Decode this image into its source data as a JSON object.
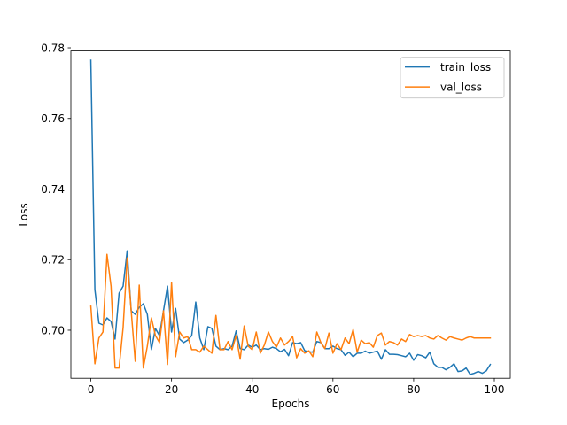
{
  "chart_data": {
    "type": "line",
    "title": "",
    "xlabel": "Epochs",
    "ylabel": "Loss",
    "xlim": [
      -4.95,
      103.95
    ],
    "ylim": [
      0.6864,
      0.7791
    ],
    "xticks": [
      0,
      20,
      40,
      60,
      80,
      100
    ],
    "yticks": [
      0.7,
      0.72,
      0.74,
      0.76,
      0.78
    ],
    "ytick_labels": [
      "0.70",
      "0.72",
      "0.74",
      "0.76",
      "0.78"
    ],
    "legend_position": "upper right",
    "grid": false,
    "x": [
      0,
      1,
      2,
      3,
      4,
      5,
      6,
      7,
      8,
      9,
      10,
      11,
      12,
      13,
      14,
      15,
      16,
      17,
      18,
      19,
      20,
      21,
      22,
      23,
      24,
      25,
      26,
      27,
      28,
      29,
      30,
      31,
      32,
      33,
      34,
      35,
      36,
      37,
      38,
      39,
      40,
      41,
      42,
      43,
      44,
      45,
      46,
      47,
      48,
      49,
      50,
      51,
      52,
      53,
      54,
      55,
      56,
      57,
      58,
      59,
      60,
      61,
      62,
      63,
      64,
      65,
      66,
      67,
      68,
      69,
      70,
      71,
      72,
      73,
      74,
      75,
      76,
      77,
      78,
      79,
      80,
      81,
      82,
      83,
      84,
      85,
      86,
      87,
      88,
      89,
      90,
      91,
      92,
      93,
      94,
      95,
      96,
      97,
      98,
      99
    ],
    "series": [
      {
        "name": "train_loss",
        "color": "#1f77b4",
        "values": [
          0.7765,
          0.7115,
          0.702,
          0.7015,
          0.7035,
          0.7025,
          0.6975,
          0.7105,
          0.7125,
          0.7225,
          0.7055,
          0.7045,
          0.7065,
          0.7075,
          0.7045,
          0.6945,
          0.7005,
          0.6985,
          0.7055,
          0.7125,
          0.6995,
          0.7062,
          0.6975,
          0.6965,
          0.6972,
          0.6985,
          0.708,
          0.6978,
          0.6945,
          0.701,
          0.7005,
          0.6955,
          0.6945,
          0.6948,
          0.6945,
          0.6955,
          0.6998,
          0.6948,
          0.6945,
          0.6958,
          0.6952,
          0.6958,
          0.6945,
          0.6948,
          0.6946,
          0.6952,
          0.6948,
          0.6939,
          0.6946,
          0.6928,
          0.6965,
          0.6962,
          0.6965,
          0.6942,
          0.6939,
          0.6938,
          0.6968,
          0.6965,
          0.6948,
          0.6948,
          0.6955,
          0.6948,
          0.6945,
          0.6929,
          0.6938,
          0.6925,
          0.6935,
          0.6935,
          0.6941,
          0.6935,
          0.6938,
          0.6941,
          0.6918,
          0.6945,
          0.6932,
          0.6932,
          0.6931,
          0.6928,
          0.6925,
          0.6935,
          0.6915,
          0.6931,
          0.6928,
          0.6922,
          0.6938,
          0.6905,
          0.6895,
          0.6895,
          0.6888,
          0.6895,
          0.6905,
          0.6883,
          0.6885,
          0.6893,
          0.6875,
          0.6878,
          0.6883,
          0.6878,
          0.6885,
          0.6903
        ]
      },
      {
        "name": "val_loss",
        "color": "#ff7f0e",
        "values": [
          0.7068,
          0.6905,
          0.6978,
          0.6995,
          0.7215,
          0.7125,
          0.6893,
          0.6893,
          0.7008,
          0.7205,
          0.7055,
          0.6912,
          0.7128,
          0.6893,
          0.6955,
          0.7035,
          0.6985,
          0.6965,
          0.7055,
          0.6903,
          0.7135,
          0.6925,
          0.6995,
          0.6978,
          0.6982,
          0.6945,
          0.6945,
          0.6938,
          0.6955,
          0.6945,
          0.6935,
          0.7042,
          0.6945,
          0.6945,
          0.6968,
          0.6945,
          0.6985,
          0.6918,
          0.7012,
          0.6955,
          0.6945,
          0.6995,
          0.6935,
          0.6958,
          0.6995,
          0.6968,
          0.6952,
          0.6978,
          0.6958,
          0.6968,
          0.6982,
          0.6922,
          0.6948,
          0.6935,
          0.6942,
          0.6925,
          0.6995,
          0.6965,
          0.6948,
          0.6992,
          0.6935,
          0.6962,
          0.6945,
          0.6978,
          0.6962,
          0.7002,
          0.6938,
          0.6972,
          0.6962,
          0.6965,
          0.6952,
          0.6985,
          0.6992,
          0.6958,
          0.6968,
          0.6965,
          0.6958,
          0.6975,
          0.6968,
          0.6988,
          0.6982,
          0.6985,
          0.6982,
          0.6985,
          0.6978,
          0.6975,
          0.6985,
          0.6978,
          0.6972,
          0.6982,
          0.6978,
          0.6975,
          0.6972,
          0.6978,
          0.6982,
          0.6978,
          0.6978,
          0.6978,
          0.6978,
          0.6978
        ]
      }
    ]
  }
}
